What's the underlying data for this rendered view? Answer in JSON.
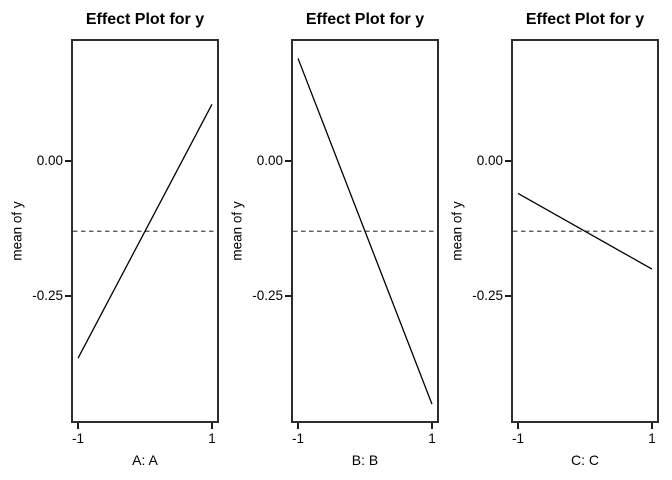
{
  "figure": {
    "background": "#ffffff",
    "text_color": "#000000",
    "panel_border_color": "#2d2d2d",
    "tick_color": "#1c1c1c"
  },
  "chart_data": [
    {
      "type": "line",
      "title": "Effect Plot for y",
      "xlabel": "A: A",
      "ylabel": "mean of  y",
      "x": [
        -1,
        1
      ],
      "y": [
        -0.365,
        0.105
      ],
      "xticks": [
        -1,
        1
      ],
      "xtick_labels": [
        "-1",
        "1"
      ],
      "yticks": [
        0,
        -0.25
      ],
      "ytick_labels": [
        "0.00",
        "-0.25"
      ],
      "xlim": [
        -1.105,
        1.105
      ],
      "ylim": [
        -0.485,
        0.226
      ],
      "grid": false,
      "line_color": "#000000",
      "reference_line": {
        "y": -0.13,
        "style": "dashed",
        "color": "#3c4c64"
      }
    },
    {
      "type": "line",
      "title": "Effect Plot for y",
      "xlabel": "B: B",
      "ylabel": "mean of  y",
      "x": [
        -1,
        1
      ],
      "y": [
        0.19,
        -0.45
      ],
      "xticks": [
        -1,
        1
      ],
      "xtick_labels": [
        "-1",
        "1"
      ],
      "yticks": [
        0,
        -0.25
      ],
      "ytick_labels": [
        "0.00",
        "-0.25"
      ],
      "xlim": [
        -1.105,
        1.105
      ],
      "ylim": [
        -0.485,
        0.226
      ],
      "grid": false,
      "line_color": "#000000",
      "reference_line": {
        "y": -0.13,
        "style": "dashed",
        "color": "#3c4c64"
      }
    },
    {
      "type": "line",
      "title": "Effect Plot for y",
      "xlabel": "C: C",
      "ylabel": "mean of  y",
      "x": [
        -1,
        1
      ],
      "y": [
        -0.06,
        -0.2
      ],
      "xticks": [
        -1,
        1
      ],
      "xtick_labels": [
        "-1",
        "1"
      ],
      "yticks": [
        0,
        -0.25
      ],
      "ytick_labels": [
        "0.00",
        "-0.25"
      ],
      "xlim": [
        -1.105,
        1.105
      ],
      "ylim": [
        -0.485,
        0.226
      ],
      "grid": false,
      "line_color": "#000000",
      "reference_line": {
        "y": -0.13,
        "style": "dashed",
        "color": "#3c4c64"
      }
    }
  ]
}
